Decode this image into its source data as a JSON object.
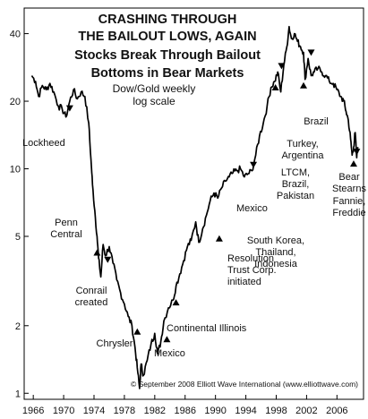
{
  "chart_data": {
    "type": "line",
    "title": [
      "CRASHING THROUGH",
      "THE BAILOUT LOWS, AGAIN",
      "Stocks Break Through Bailout",
      "Bottoms in Bear Markets"
    ],
    "subtitle": [
      "Dow/Gold weekly",
      "log scale"
    ],
    "xlabel": "",
    "ylabel": "",
    "scale": "log",
    "grid": false,
    "x_ticks": [
      1966,
      1970,
      1974,
      1978,
      1982,
      1986,
      1990,
      1994,
      1998,
      2002,
      2006
    ],
    "y_ticks": [
      1,
      2,
      5,
      10,
      20,
      40
    ],
    "xlim": [
      1964.8,
      2009.5
    ],
    "ylim": [
      0.94,
      52
    ],
    "series": [
      {
        "name": "",
        "points": [
          [
            1965.8,
            26
          ],
          [
            1966.3,
            24.5
          ],
          [
            1966.7,
            21
          ],
          [
            1967.2,
            23.5
          ],
          [
            1967.7,
            22.5
          ],
          [
            1968.2,
            24
          ],
          [
            1968.7,
            22
          ],
          [
            1969.3,
            19
          ],
          [
            1969.8,
            18.5
          ],
          [
            1970.3,
            17
          ],
          [
            1970.8,
            20
          ],
          [
            1971.3,
            22.5
          ],
          [
            1971.8,
            20.5
          ],
          [
            1972.3,
            22
          ],
          [
            1972.8,
            21
          ],
          [
            1973.3,
            16
          ],
          [
            1973.6,
            11
          ],
          [
            1973.8,
            8.5
          ],
          [
            1974.1,
            6.5
          ],
          [
            1974.4,
            5
          ],
          [
            1974.6,
            4
          ],
          [
            1974.9,
            3.3
          ],
          [
            1975.2,
            4.6
          ],
          [
            1975.5,
            4.1
          ],
          [
            1976.0,
            4.5
          ],
          [
            1976.5,
            3.8
          ],
          [
            1977.0,
            3.2
          ],
          [
            1977.5,
            2.8
          ],
          [
            1978.0,
            2.5
          ],
          [
            1978.5,
            2.2
          ],
          [
            1979.0,
            2.0
          ],
          [
            1979.4,
            1.6
          ],
          [
            1979.7,
            1.3
          ],
          [
            1980.0,
            1.05
          ],
          [
            1980.2,
            1.35
          ],
          [
            1980.5,
            1.2
          ],
          [
            1981.0,
            1.4
          ],
          [
            1981.5,
            1.65
          ],
          [
            1982.0,
            1.85
          ],
          [
            1982.4,
            1.5
          ],
          [
            1982.8,
            1.7
          ],
          [
            1983.2,
            2.1
          ],
          [
            1983.8,
            2.4
          ],
          [
            1984.4,
            2.6
          ],
          [
            1984.8,
            3.0
          ],
          [
            1985.3,
            3.4
          ],
          [
            1985.8,
            3.9
          ],
          [
            1986.3,
            4.5
          ],
          [
            1986.8,
            4.8
          ],
          [
            1987.4,
            5.8
          ],
          [
            1987.8,
            4.7
          ],
          [
            1988.3,
            5.4
          ],
          [
            1988.8,
            6.2
          ],
          [
            1989.3,
            7.2
          ],
          [
            1989.8,
            7.8
          ],
          [
            1990.3,
            7.4
          ],
          [
            1990.8,
            8.2
          ],
          [
            1991.3,
            8.8
          ],
          [
            1991.8,
            9.2
          ],
          [
            1992.3,
            9.6
          ],
          [
            1992.8,
            9.8
          ],
          [
            1993.3,
            10.0
          ],
          [
            1993.8,
            9.2
          ],
          [
            1994.3,
            9.5
          ],
          [
            1994.8,
            9.8
          ],
          [
            1995.3,
            11.5
          ],
          [
            1995.8,
            14
          ],
          [
            1996.3,
            16
          ],
          [
            1996.8,
            19
          ],
          [
            1997.3,
            23
          ],
          [
            1997.8,
            24.5
          ],
          [
            1998.2,
            27
          ],
          [
            1998.6,
            22
          ],
          [
            1999.0,
            29
          ],
          [
            1999.4,
            35
          ],
          [
            1999.7,
            43
          ],
          [
            2000.0,
            38
          ],
          [
            2000.4,
            40
          ],
          [
            2000.8,
            37
          ],
          [
            2001.2,
            35
          ],
          [
            2001.6,
            33
          ],
          [
            2001.8,
            25
          ],
          [
            2002.2,
            31
          ],
          [
            2002.6,
            26
          ],
          [
            2003.0,
            27
          ],
          [
            2003.5,
            28
          ],
          [
            2004.0,
            27
          ],
          [
            2004.5,
            26
          ],
          [
            2005.0,
            24.5
          ],
          [
            2005.5,
            24
          ],
          [
            2006.0,
            22.5
          ],
          [
            2006.5,
            21
          ],
          [
            2006.9,
            20
          ],
          [
            2007.2,
            18
          ],
          [
            2007.5,
            16.5
          ],
          [
            2007.8,
            13.5
          ],
          [
            2008.0,
            11.5
          ],
          [
            2008.2,
            12.5
          ],
          [
            2008.4,
            14.5
          ],
          [
            2008.6,
            11.2
          ],
          [
            2008.75,
            12.5
          ]
        ]
      }
    ],
    "annotations": [
      {
        "lines": [
          "Lockheed"
        ],
        "point": [
          1970.8,
          17.5
        ],
        "direction": "down"
      },
      {
        "lines": [
          "Penn",
          "Central"
        ],
        "point": [
          1974.4,
          4.5
        ],
        "direction": "up"
      },
      {
        "lines": [
          "Conrail",
          "created"
        ],
        "point": [
          1975.8,
          3.7
        ],
        "direction": "down"
      },
      {
        "lines": [
          "Chrysler"
        ],
        "point": [
          1979.7,
          2.0
        ],
        "direction": "up"
      },
      {
        "lines": [
          "Mexico"
        ],
        "point": [
          1983.6,
          1.85
        ],
        "direction": "up"
      },
      {
        "lines": [
          "Continental Illinois"
        ],
        "point": [
          1984.8,
          2.7
        ],
        "direction": "up"
      },
      {
        "lines": [
          "Resolution",
          "Trust Corp.",
          "initiated"
        ],
        "point": [
          1990.5,
          5.2
        ],
        "direction": "up"
      },
      {
        "lines": [
          "Mexico"
        ],
        "point": [
          1995.0,
          9.8
        ],
        "direction": "down"
      },
      {
        "lines": [
          "South Korea,",
          "Thailand,",
          "Indonesia"
        ],
        "point": [
          1997.9,
          24.5
        ],
        "direction": "up"
      },
      {
        "lines": [
          "LTCM,",
          "Brazil,",
          "Pakistan"
        ],
        "point": [
          1998.7,
          27
        ],
        "direction": "down"
      },
      {
        "lines": [
          "Turkey,",
          "Argentina"
        ],
        "point": [
          2001.6,
          25
        ],
        "direction": "up"
      },
      {
        "lines": [
          "Brazil"
        ],
        "point": [
          2002.6,
          31
        ],
        "direction": "down"
      },
      {
        "lines": [
          "Bear",
          "Stearns"
        ],
        "point": [
          2008.2,
          11.2
        ],
        "direction": "up"
      },
      {
        "lines": [
          "Fannie,",
          "Freddie"
        ],
        "point": [
          2008.6,
          11.2
        ],
        "direction": "down"
      }
    ]
  },
  "footer": {
    "copyright": "© September 2008 Elliott Wave International (www.elliottwave.com)"
  }
}
